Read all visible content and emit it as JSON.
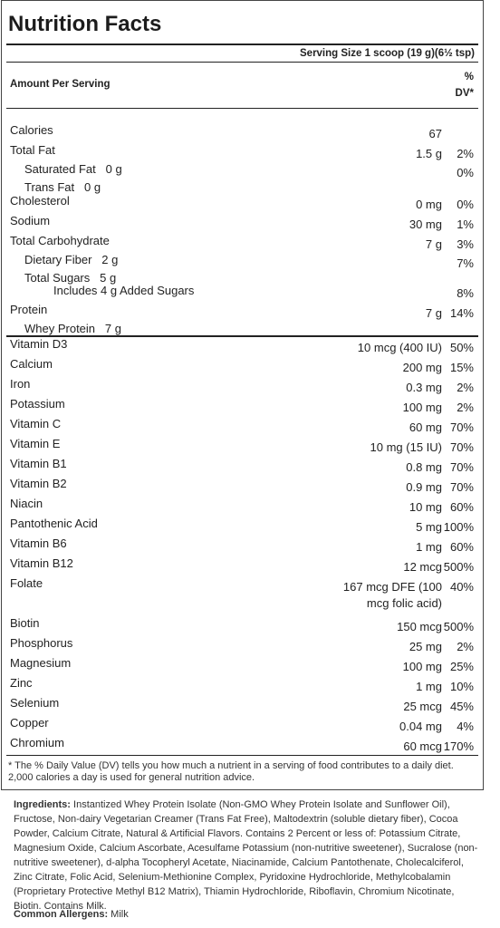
{
  "title": "Nutrition Facts",
  "serving": "Serving Size 1 scoop (19 g)(6½ tsp)",
  "amount_per_serving": "Amount Per Serving",
  "dv_header": [
    "%",
    "DV*"
  ],
  "rows": [
    {
      "name": "Calories",
      "amount": "67",
      "dv": ""
    },
    {
      "name": "Total Fat",
      "amount": "1.5 g",
      "dv": "2%"
    },
    {
      "name": "Saturated Fat   0 g",
      "amount": "",
      "dv": "0%"
    },
    {
      "name": "Trans Fat   0 g",
      "amount": "",
      "dv": ""
    },
    {
      "name": "Cholesterol",
      "amount": "0 mg",
      "dv": "0%"
    },
    {
      "name": "Sodium",
      "amount": "30 mg",
      "dv": "1%"
    },
    {
      "name": "Total Carbohydrate",
      "amount": "7 g",
      "dv": "3%"
    },
    {
      "name": "Dietary Fiber   2 g",
      "amount": "",
      "dv": "7%"
    },
    {
      "name": "Total Sugars   5 g",
      "amount": "",
      "dv": ""
    },
    {
      "name": "Includes 4 g Added Sugars",
      "amount": "",
      "dv": "8%"
    },
    {
      "name": "Protein",
      "amount": "7 g",
      "dv": "14%"
    },
    {
      "name": "Whey Protein   7 g",
      "amount": "",
      "dv": ""
    }
  ],
  "vitamins": [
    {
      "name": "Vitamin D3",
      "amount": "10 mcg (400 IU)",
      "dv": "50%"
    },
    {
      "name": "Calcium",
      "amount": "200 mg",
      "dv": "15%"
    },
    {
      "name": "Iron",
      "amount": "0.3 mg",
      "dv": "2%"
    },
    {
      "name": "Potassium",
      "amount": "100 mg",
      "dv": "2%"
    },
    {
      "name": "Vitamin C",
      "amount": "60 mg",
      "dv": "70%"
    },
    {
      "name": "Vitamin E",
      "amount": "10 mg (15 IU)",
      "dv": "70%"
    },
    {
      "name": "Vitamin B1",
      "amount": "0.8 mg",
      "dv": "70%"
    },
    {
      "name": "Vitamin B2",
      "amount": "0.9 mg",
      "dv": "70%"
    },
    {
      "name": "Niacin",
      "amount": "10 mg",
      "dv": "60%"
    },
    {
      "name": "Pantothenic Acid",
      "amount": "5 mg",
      "dv": "100%"
    },
    {
      "name": "Vitamin B6",
      "amount": "1 mg",
      "dv": "60%"
    },
    {
      "name": "Vitamin B12",
      "amount": "12 mcg",
      "dv": "500%"
    },
    {
      "name": "Folate",
      "amount": "167 mcg DFE (100",
      "amount2": "mcg folic acid)",
      "dv": "40%"
    },
    {
      "name": "Biotin",
      "amount": "150 mcg",
      "dv": "500%"
    },
    {
      "name": "Phosphorus",
      "amount": "25 mg",
      "dv": "2%"
    },
    {
      "name": "Magnesium",
      "amount": "100 mg",
      "dv": "25%"
    },
    {
      "name": "Zinc",
      "amount": "1 mg",
      "dv": "10%"
    },
    {
      "name": "Selenium",
      "amount": "25 mcg",
      "dv": "45%"
    },
    {
      "name": "Copper",
      "amount": "0.04 mg",
      "dv": "4%"
    },
    {
      "name": "Chromium",
      "amount": "60 mcg",
      "dv": "170%"
    }
  ],
  "footnote": "* The % Daily Value (DV) tells you how much a nutrient in a serving of food contributes to a daily diet. 2,000 calories a day is used for general nutrition advice.",
  "ingredients_label": "Ingredients:",
  "ingredients_text": "Instantized Whey Protein Isolate (Non-GMO Whey Protein Isolate and Sunflower Oil), Fructose, Non-dairy Vegetarian Creamer (Trans Fat Free), Maltodextrin (soluble dietary fiber), Cocoa Powder, Calcium Citrate, Natural & Artificial Flavors. Contains 2 Percent or less of: Potassium Citrate, Magnesium Oxide, Calcium Ascorbate, Acesulfame Potassium (non-nutritive sweetener), Sucralose (non-nutritive sweetener), d-alpha Tocopheryl Acetate, Niacinamide, Calcium Pantothenate, Cholecalciferol, Zinc Citrate, Folic Acid, Selenium-Methionine Complex, Pyridoxine Hydrochloride, Methylcobalamin (Proprietary Protective Methyl B12 Matrix), Thiamin Hydrochloride, Riboflavin, Chromium Nicotinate, Biotin. Contains Milk.",
  "allergens_label": "Common Allergens:",
  "allergens_text": "Milk"
}
